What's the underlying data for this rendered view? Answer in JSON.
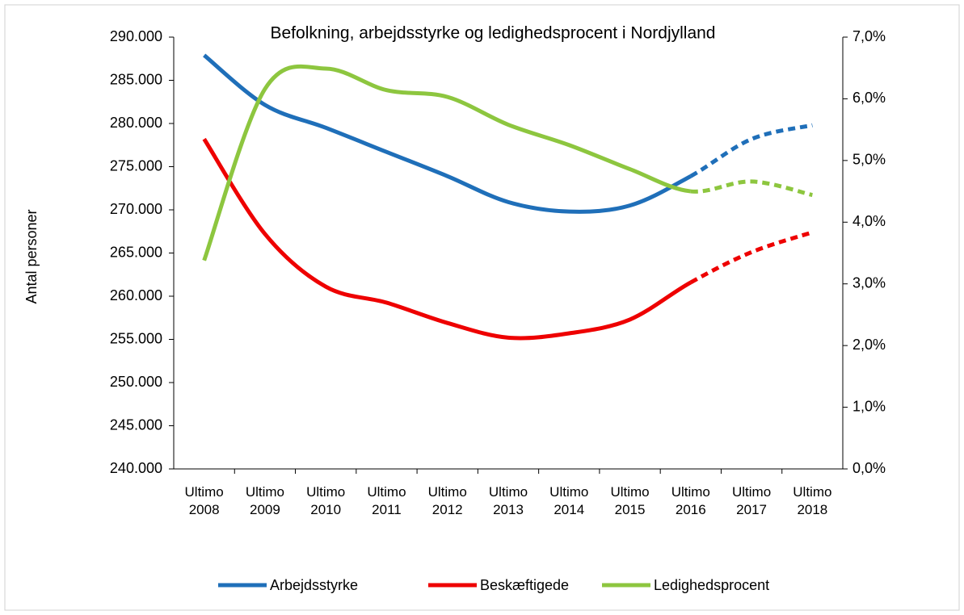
{
  "chart_data": {
    "type": "line",
    "title": "Befolkning, arbejdsstyrke og ledighedsprocent i Nordjylland",
    "y_label": "Antal personer",
    "categories": [
      "Ultimo 2008",
      "Ultimo 2009",
      "Ultimo 2010",
      "Ultimo 2011",
      "Ultimo 2012",
      "Ultimo 2013",
      "Ultimo 2014",
      "Ultimo 2015",
      "Ultimo 2016",
      "Ultimo 2017",
      "Ultimo 2018"
    ],
    "series": [
      {
        "name": "Arbejdsstyrke",
        "color": "#1f6fb9",
        "values": [
          287900,
          282150,
          279500,
          276700,
          273900,
          270900,
          269800,
          270500,
          273900,
          278200,
          279800
        ]
      },
      {
        "name": "Beskæftigede",
        "color": "#ee0000",
        "values": [
          278200,
          267200,
          261100,
          259250,
          256900,
          255200,
          255700,
          257300,
          261600,
          265100,
          267400
        ]
      },
      {
        "name": "Ledighedsprocent",
        "color": "#8dc63f",
        "axis": "y2",
        "values": [
          3.38,
          6.16,
          6.49,
          6.14,
          6.03,
          5.58,
          5.25,
          4.86,
          4.5,
          4.66,
          4.44
        ]
      }
    ],
    "dashed_from_index": 8,
    "ylim": [
      240000,
      290000
    ],
    "yticks": [
      {
        "value": 240000,
        "label": "240.000"
      },
      {
        "value": 245000,
        "label": "245.000"
      },
      {
        "value": 250000,
        "label": "250.000"
      },
      {
        "value": 255000,
        "label": "255.000"
      },
      {
        "value": 260000,
        "label": "260.000"
      },
      {
        "value": 265000,
        "label": "265.000"
      },
      {
        "value": 270000,
        "label": "270.000"
      },
      {
        "value": 275000,
        "label": "275.000"
      },
      {
        "value": 280000,
        "label": "280.000"
      },
      {
        "value": 285000,
        "label": "285.000"
      },
      {
        "value": 290000,
        "label": "290.000"
      }
    ],
    "y2lim": [
      0,
      7
    ],
    "y2ticks": [
      {
        "value": 0,
        "label": "0,0%"
      },
      {
        "value": 1,
        "label": "1,0%"
      },
      {
        "value": 2,
        "label": "2,0%"
      },
      {
        "value": 3,
        "label": "3,0%"
      },
      {
        "value": 4,
        "label": "4,0%"
      },
      {
        "value": 5,
        "label": "5,0%"
      },
      {
        "value": 6,
        "label": "6,0%"
      },
      {
        "value": 7,
        "label": "7,0%"
      }
    ],
    "legend": "bottom"
  }
}
